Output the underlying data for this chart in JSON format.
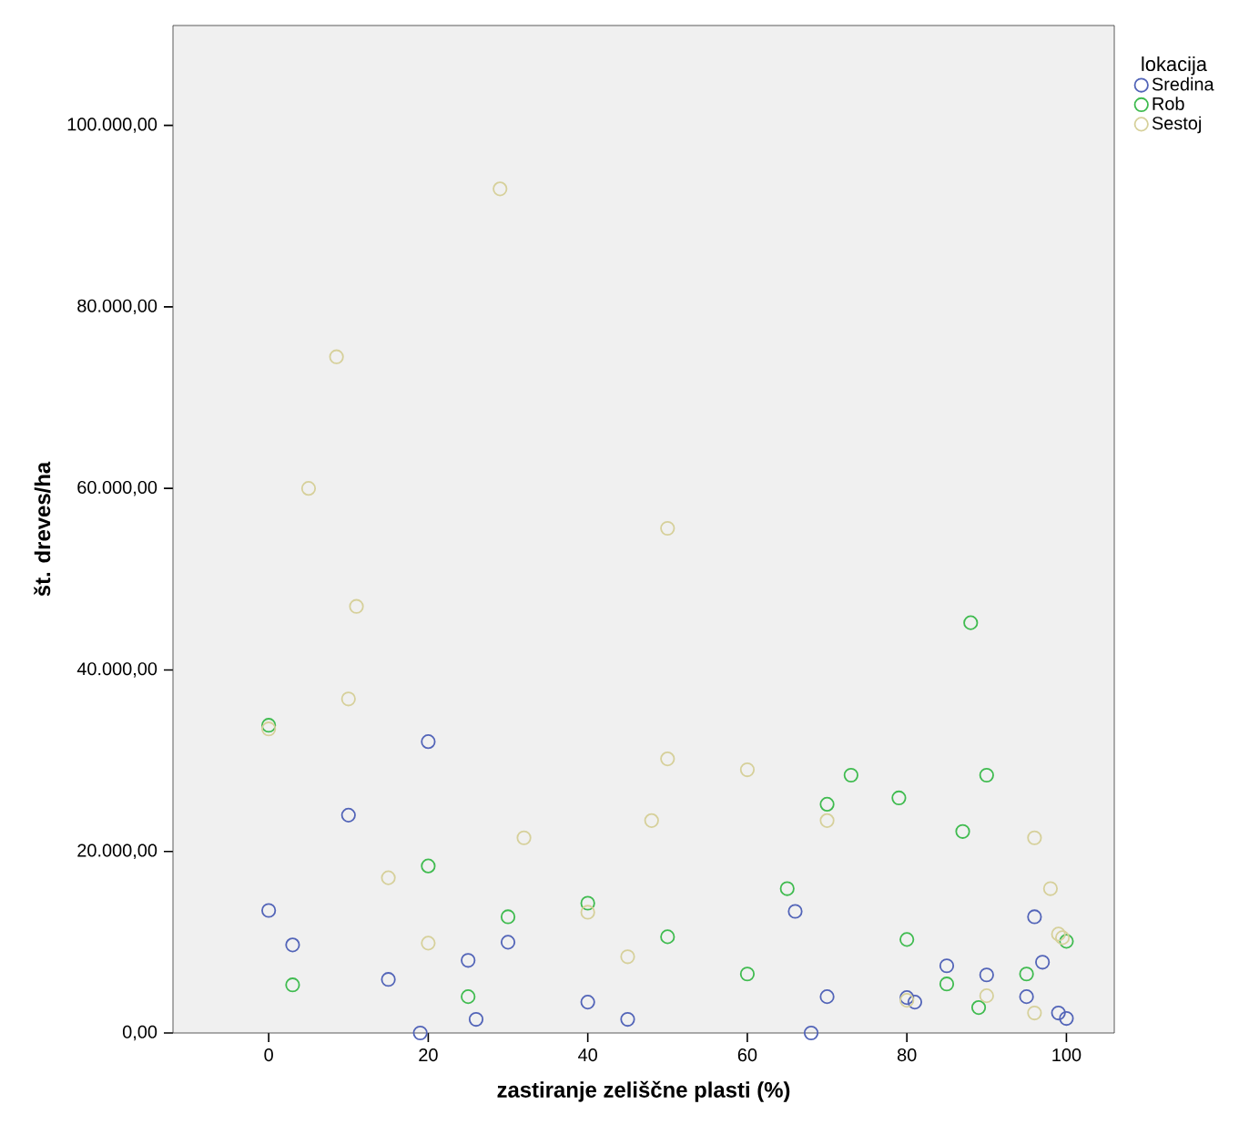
{
  "chart_data": {
    "type": "scatter",
    "xlabel": "zastiranje zeliščne plasti (%)",
    "ylabel": "št. dreves/ha",
    "legend_title": "lokacija",
    "legend": "top right",
    "marker": "circle",
    "grid": false,
    "xlim": [
      -12,
      106
    ],
    "xticks": [
      0,
      20,
      40,
      60,
      80,
      100
    ],
    "ylim": [
      0,
      111000
    ],
    "yticks": [
      {
        "value": 0,
        "label": "0,00"
      },
      {
        "value": 20000,
        "label": "20.000,00"
      },
      {
        "value": 40000,
        "label": "40.000,00"
      },
      {
        "value": 60000,
        "label": "60.000,00"
      },
      {
        "value": 80000,
        "label": "80.000,00"
      },
      {
        "value": 100000,
        "label": "100.000,00"
      }
    ],
    "series": [
      {
        "name": "Sredina",
        "color": "#5264b8",
        "x": [
          20,
          10,
          0,
          3,
          15,
          25,
          30,
          19,
          26,
          40,
          45,
          66,
          96,
          97,
          85,
          90,
          70,
          80,
          81,
          95,
          68,
          99,
          100
        ],
        "values": [
          32100,
          24000,
          13500,
          9700,
          5900,
          8000,
          10000,
          0,
          1500,
          3400,
          1500,
          13400,
          12800,
          7800,
          7400,
          6400,
          4000,
          3900,
          3400,
          4000,
          0,
          2200,
          1600
        ]
      },
      {
        "name": "Rob",
        "color": "#3fbb4f",
        "x": [
          0,
          20,
          3,
          30,
          25,
          40,
          88,
          73,
          90,
          70,
          79,
          87,
          65,
          50,
          80,
          60,
          85,
          95,
          89,
          100
        ],
        "values": [
          33900,
          18400,
          5300,
          12800,
          4000,
          14300,
          45200,
          28400,
          28400,
          25200,
          25900,
          22200,
          15900,
          10600,
          10300,
          6500,
          5400,
          6500,
          2800,
          10100
        ]
      },
      {
        "name": "Sestoj",
        "color": "#d6d09a",
        "x": [
          11,
          10,
          0,
          32,
          15,
          20,
          40,
          45,
          48,
          29,
          8.5,
          5,
          50,
          50,
          60,
          70,
          96,
          98,
          99,
          99.5,
          90,
          96,
          80
        ],
        "values": [
          47000,
          36800,
          33500,
          21500,
          17100,
          9900,
          13300,
          8400,
          23400,
          93000,
          74500,
          60000,
          55600,
          30200,
          29000,
          23400,
          21500,
          15900,
          10900,
          10500,
          4100,
          2200,
          3600
        ]
      }
    ]
  }
}
